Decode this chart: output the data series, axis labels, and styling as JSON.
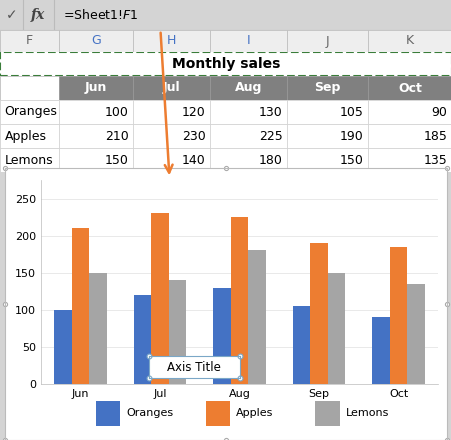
{
  "title": "Monthly sales",
  "formula_bar_text": "=Sheet1!$F$1",
  "col_headers": [
    "F",
    "G",
    "H",
    "I",
    "J",
    "K"
  ],
  "months": [
    "Jun",
    "Jul",
    "Aug",
    "Sep",
    "Oct"
  ],
  "table_rows": [
    [
      "Oranges",
      100,
      120,
      130,
      105,
      90
    ],
    [
      "Apples",
      210,
      230,
      225,
      190,
      185
    ],
    [
      "Lemons",
      150,
      140,
      180,
      150,
      135
    ]
  ],
  "series": {
    "Oranges": [
      100,
      120,
      130,
      105,
      90
    ],
    "Apples": [
      210,
      230,
      225,
      190,
      185
    ],
    "Lemons": [
      150,
      140,
      180,
      150,
      135
    ]
  },
  "colors": {
    "Oranges": "#4472C4",
    "Apples": "#ED7D31",
    "Lemons": "#A5A5A5"
  },
  "ylim": [
    0,
    275
  ],
  "yticks": [
    0,
    50,
    100,
    150,
    200,
    250
  ],
  "axis_title": "Axis Title",
  "arrow_color": "#ED7D31",
  "header_gray": "#808080",
  "header_text": "#FFFFFF",
  "cell_border": "#C0C0C0",
  "title_border": "#3A7D3A",
  "chart_outer_border": "#AAAAAA",
  "axis_title_border": "#7BA7C7",
  "fig_bg": "#D4D4D4",
  "formula_bg": "#F2F2F2",
  "table_bg": "#FFFFFF",
  "col_x_fracs": [
    0.0,
    0.13,
    0.295,
    0.465,
    0.635,
    0.815,
    1.0
  ]
}
